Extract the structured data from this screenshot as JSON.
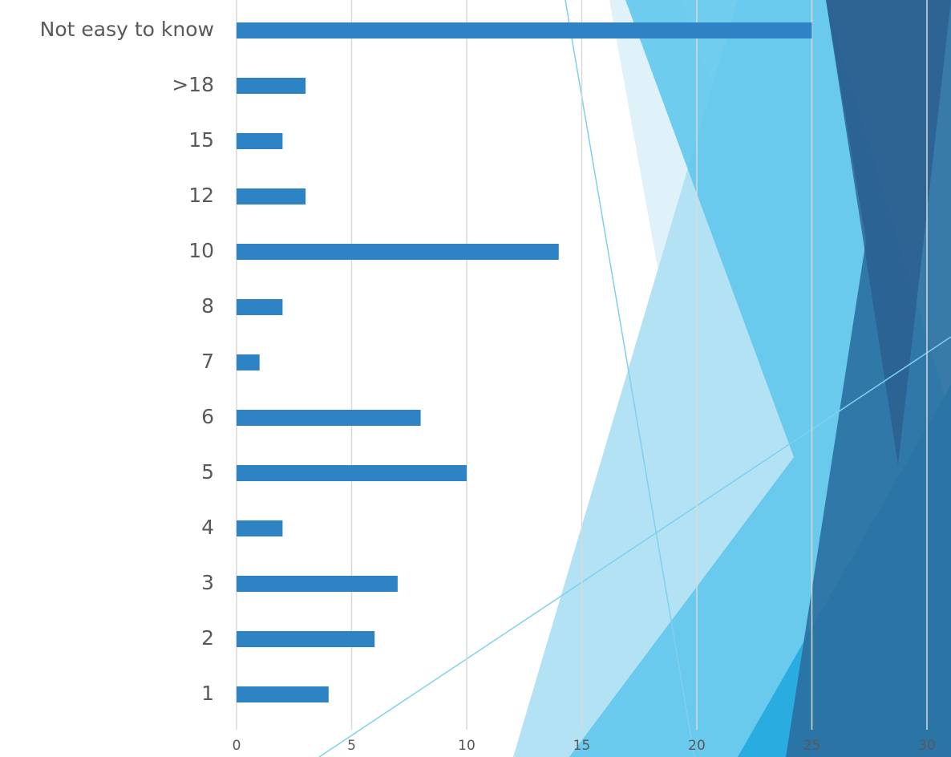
{
  "chart_data": {
    "type": "bar",
    "orientation": "horizontal",
    "categories": [
      "Not easy to know",
      ">18",
      "15",
      "12",
      "10",
      "8",
      "7",
      "6",
      "5",
      "4",
      "3",
      "2",
      "1"
    ],
    "values": [
      25,
      3,
      2,
      3,
      14,
      2,
      1,
      8,
      10,
      2,
      7,
      6,
      4
    ],
    "color": "#2e83c4",
    "xlim": [
      0,
      30
    ],
    "xticks": [
      0,
      5,
      10,
      15,
      20,
      25,
      30
    ],
    "grid": true
  }
}
